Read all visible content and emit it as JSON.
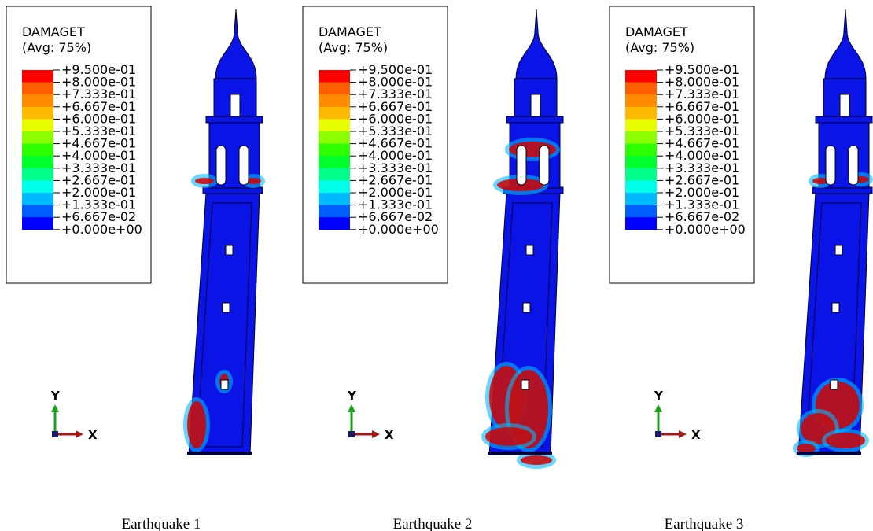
{
  "legend_colors": [
    "#ff0000",
    "#ff5d00",
    "#ff8b00",
    "#ffb900",
    "#e8ff00",
    "#8bff00",
    "#2eff00",
    "#00ff2e",
    "#00ff8b",
    "#00ffe8",
    "#00b9ff",
    "#005dff",
    "#0000ff"
  ],
  "panels": [
    {
      "legend": {
        "title": "DAMAGET",
        "subtitle": "(Avg: 75%)",
        "levels": [
          "+9.500e-01",
          "+8.000e-01",
          "+7.333e-01",
          "+6.667e-01",
          "+6.000e-01",
          "+5.333e-01",
          "+4.667e-01",
          "+4.000e-01",
          "+3.333e-01",
          "+2.667e-01",
          "+2.000e-01",
          "+1.333e-01",
          "+6.667e-02",
          "+0.000e+00"
        ]
      },
      "axes": {
        "y": "Y",
        "x": "X"
      },
      "caption": "Earthquake 1"
    },
    {
      "legend": {
        "title": "DAMAGET",
        "subtitle": "(Avg: 75%)",
        "levels": [
          "+9.500e-01",
          "+8.000e-01",
          "+7.333e-01",
          "+6.667e-01",
          "+6.000e-01",
          "+5.333e-01",
          "+4.667e-01",
          "+4.000e-01",
          "+3.333e-01",
          "+2.667e-01",
          "+2.000e-01",
          "+1.333e-01",
          "+6.667e-02",
          "+0.000e+00"
        ]
      },
      "axes": {
        "y": "Y",
        "x": "X"
      },
      "caption": "Earthquake 2"
    },
    {
      "legend": {
        "title": "DAMAGET",
        "subtitle": "(Avg: 75%)",
        "levels": [
          "+9.500e-01",
          "+8.000e-01",
          "+7.333e-01",
          "+6.667e-01",
          "+6.000e-01",
          "+5.333e-01",
          "+4.667e-01",
          "+4.000e-01",
          "+3.333e-01",
          "+2.667e-01",
          "+2.000e-01",
          "+1.333e-01",
          "+6.667e-02",
          "+0.000e+00"
        ]
      },
      "axes": {
        "y": "Y",
        "x": "X"
      },
      "caption": "Earthquake 3"
    }
  ]
}
